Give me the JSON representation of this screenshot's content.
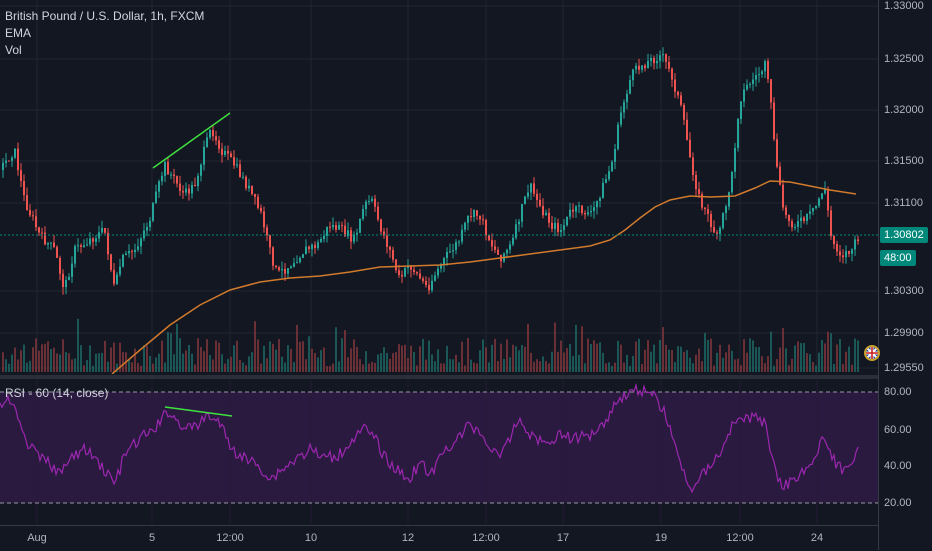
{
  "main": {
    "title": "British Pound / U.S. Dollar, 1h, FXCM",
    "indicators": [
      "EMA",
      "Vol"
    ],
    "price_axis": [
      "1.33000",
      "1.32500",
      "1.32000",
      "1.31500",
      "1.31100",
      "1.30802",
      "48:00",
      "1.30300",
      "1.29900",
      "1.29550"
    ],
    "current_price": "1.30802",
    "countdown": "48:00"
  },
  "rsi": {
    "title": "RSI - 60 (14, close)",
    "axis": [
      "80.00",
      "60.00",
      "40.00",
      "20.00"
    ]
  },
  "time_axis": [
    "Aug",
    "5",
    "12:00",
    "10",
    "12",
    "12:00",
    "17",
    "19",
    "12:00",
    "24"
  ],
  "colors": {
    "background": "#131722",
    "up": "#26a69a",
    "down": "#ef5350",
    "ema": "#d17a2c",
    "rsi_line": "#9c27b0",
    "rsi_band": "#2a1a3f",
    "trendline": "#3fe03f",
    "price_badge": "#00897b",
    "countdown_badge": "#00897b"
  }
}
